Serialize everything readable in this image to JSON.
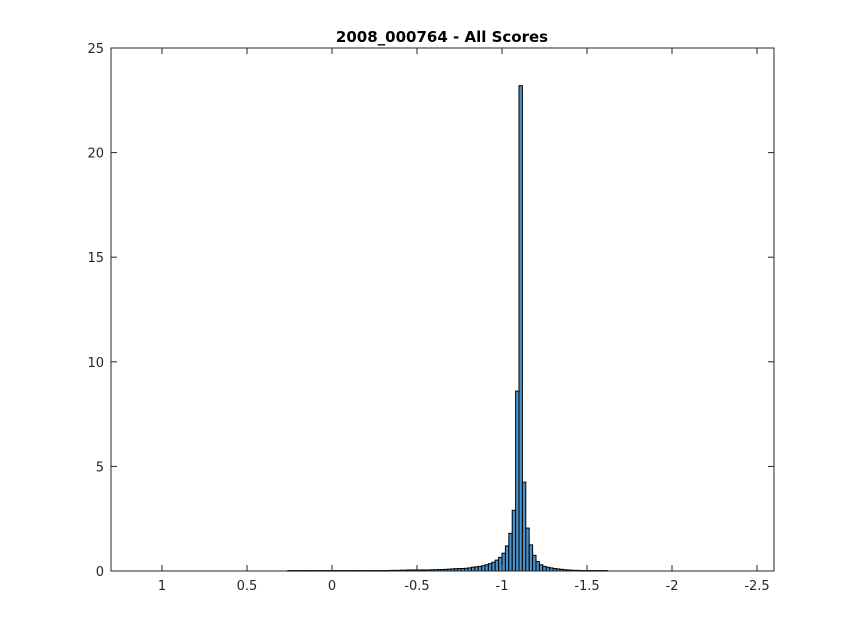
{
  "chart_data": {
    "type": "bar",
    "title": "2008_000764 - All Scores",
    "xlabel": "",
    "ylabel": "",
    "x_reversed": true,
    "xlim": [
      -2.6,
      1.3
    ],
    "ylim": [
      0,
      25
    ],
    "xticks": [
      1,
      0.5,
      0,
      -0.5,
      -1,
      -1.5,
      -2,
      -2.5
    ],
    "xtick_labels": [
      "1",
      "0.5",
      "0",
      "-0.5",
      "-1",
      "-1.5",
      "-2",
      "-2.5"
    ],
    "yticks": [
      0,
      5,
      10,
      15,
      20,
      25
    ],
    "ytick_labels": [
      "0",
      "5",
      "10",
      "15",
      "20",
      "25"
    ],
    "grid": false,
    "bar_color": "#4a91c9",
    "bar_edge_color": "#000000",
    "bin_width": 0.02,
    "bin_centers": [
      0.25,
      0.23,
      0.21,
      0.19,
      0.17,
      0.15,
      0.13,
      0.11,
      0.09,
      0.07,
      0.05,
      0.03,
      0.01,
      -0.01,
      -0.03,
      -0.05,
      -0.07,
      -0.09,
      -0.11,
      -0.13,
      -0.15,
      -0.17,
      -0.19,
      -0.21,
      -0.23,
      -0.25,
      -0.27,
      -0.29,
      -0.31,
      -0.33,
      -0.35,
      -0.37,
      -0.39,
      -0.41,
      -0.43,
      -0.45,
      -0.47,
      -0.49,
      -0.51,
      -0.53,
      -0.55,
      -0.57,
      -0.59,
      -0.61,
      -0.63,
      -0.65,
      -0.67,
      -0.69,
      -0.71,
      -0.73,
      -0.75,
      -0.77,
      -0.79,
      -0.81,
      -0.83,
      -0.85,
      -0.87,
      -0.89,
      -0.91,
      -0.93,
      -0.95,
      -0.97,
      -0.99,
      -1.01,
      -1.03,
      -1.05,
      -1.07,
      -1.09,
      -1.11,
      -1.13,
      -1.15,
      -1.17,
      -1.19,
      -1.21,
      -1.23,
      -1.25,
      -1.27,
      -1.29,
      -1.31,
      -1.33,
      -1.35,
      -1.37,
      -1.39,
      -1.41,
      -1.43,
      -1.45,
      -1.47,
      -1.49,
      -1.51,
      -1.53,
      -1.55,
      -1.57,
      -1.59,
      -1.61
    ],
    "values": [
      0.02,
      0.02,
      0.02,
      0.02,
      0.02,
      0.02,
      0.02,
      0.02,
      0.02,
      0.02,
      0.02,
      0.02,
      0.02,
      0.02,
      0.02,
      0.02,
      0.02,
      0.02,
      0.02,
      0.02,
      0.02,
      0.02,
      0.02,
      0.02,
      0.02,
      0.02,
      0.02,
      0.02,
      0.02,
      0.02,
      0.03,
      0.03,
      0.03,
      0.04,
      0.04,
      0.05,
      0.05,
      0.05,
      0.05,
      0.05,
      0.05,
      0.05,
      0.06,
      0.06,
      0.07,
      0.07,
      0.08,
      0.09,
      0.1,
      0.11,
      0.12,
      0.12,
      0.13,
      0.15,
      0.18,
      0.2,
      0.22,
      0.25,
      0.3,
      0.35,
      0.42,
      0.52,
      0.65,
      0.85,
      1.2,
      1.8,
      2.9,
      8.6,
      23.2,
      4.25,
      2.05,
      1.25,
      0.75,
      0.45,
      0.3,
      0.22,
      0.18,
      0.15,
      0.12,
      0.1,
      0.08,
      0.06,
      0.05,
      0.04,
      0.03,
      0.03,
      0.02,
      0.02,
      0.02,
      0.02,
      0.02,
      0.02,
      0.02,
      0.02
    ]
  }
}
